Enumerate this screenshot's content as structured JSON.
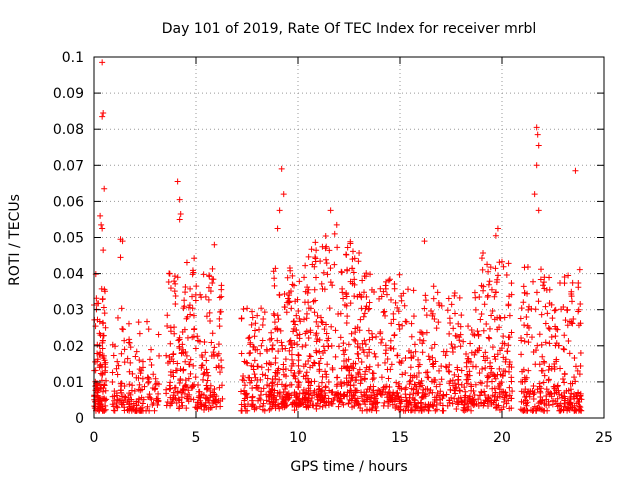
{
  "chart_data": {
    "type": "scatter",
    "title": "Day 101 of 2019, Rate Of TEC Index for receiver mrbl",
    "xlabel": "GPS time / hours",
    "ylabel": "ROTI / TECUs",
    "xlim": [
      0,
      25
    ],
    "ylim": [
      0,
      0.1
    ],
    "grid": true,
    "marker": "plus",
    "series": [
      {
        "color": "#ff0000",
        "outliers": [
          [
            0.4,
            0.0985
          ],
          [
            0.45,
            0.0845
          ],
          [
            0.4,
            0.0835
          ],
          [
            0.5,
            0.0635
          ],
          [
            0.3,
            0.056
          ],
          [
            0.35,
            0.0535
          ],
          [
            0.4,
            0.0525
          ],
          [
            0.45,
            0.0465
          ],
          [
            1.3,
            0.0495
          ],
          [
            1.4,
            0.049
          ],
          [
            1.3,
            0.0445
          ],
          [
            4.1,
            0.0655
          ],
          [
            4.2,
            0.0605
          ],
          [
            4.25,
            0.0565
          ],
          [
            4.2,
            0.055
          ],
          [
            5.9,
            0.048
          ],
          [
            9.2,
            0.069
          ],
          [
            9.3,
            0.062
          ],
          [
            9.1,
            0.0575
          ],
          [
            9.0,
            0.0525
          ],
          [
            11.6,
            0.0575
          ],
          [
            11.9,
            0.0535
          ],
          [
            11.8,
            0.051
          ],
          [
            16.2,
            0.049
          ],
          [
            19.8,
            0.0525
          ],
          [
            19.7,
            0.0505
          ],
          [
            21.7,
            0.0805
          ],
          [
            21.75,
            0.0785
          ],
          [
            21.8,
            0.0755
          ],
          [
            21.7,
            0.07
          ],
          [
            21.6,
            0.062
          ],
          [
            21.8,
            0.0575
          ],
          [
            23.6,
            0.0685
          ]
        ],
        "segments": [
          {
            "x_range": [
              0.0,
              0.6
            ],
            "baseline": 0.011,
            "peak": 0.038,
            "density": 120
          },
          {
            "x_range": [
              0.9,
              1.8
            ],
            "baseline": 0.009,
            "peak": 0.03,
            "density": 70
          },
          {
            "x_range": [
              1.8,
              3.2
            ],
            "baseline": 0.008,
            "peak": 0.028,
            "density": 90
          },
          {
            "x_range": [
              3.5,
              6.3
            ],
            "baseline": 0.012,
            "peak": 0.042,
            "density": 260
          },
          {
            "x_range": [
              7.2,
              8.8
            ],
            "baseline": 0.01,
            "peak": 0.03,
            "density": 140
          },
          {
            "x_range": [
              8.8,
              10.5
            ],
            "baseline": 0.012,
            "peak": 0.04,
            "density": 220
          },
          {
            "x_range": [
              10.5,
              13.0
            ],
            "baseline": 0.013,
            "peak": 0.048,
            "density": 300
          },
          {
            "x_range": [
              13.0,
              15.0
            ],
            "baseline": 0.011,
            "peak": 0.04,
            "density": 200
          },
          {
            "x_range": [
              15.0,
              17.0
            ],
            "baseline": 0.01,
            "peak": 0.036,
            "density": 180
          },
          {
            "x_range": [
              17.0,
              19.0
            ],
            "baseline": 0.01,
            "peak": 0.036,
            "density": 170
          },
          {
            "x_range": [
              19.0,
              20.5
            ],
            "baseline": 0.011,
            "peak": 0.044,
            "density": 160
          },
          {
            "x_range": [
              20.9,
              22.3
            ],
            "baseline": 0.009,
            "peak": 0.042,
            "density": 130
          },
          {
            "x_range": [
              22.3,
              23.9
            ],
            "baseline": 0.01,
            "peak": 0.04,
            "density": 160
          }
        ]
      }
    ],
    "xticks": [
      "0",
      "5",
      "10",
      "15",
      "20",
      "25"
    ],
    "yticks": [
      "0",
      "0.01",
      "0.02",
      "0.03",
      "0.04",
      "0.05",
      "0.06",
      "0.07",
      "0.08",
      "0.09",
      "0.1"
    ],
    "xtick_values": [
      0,
      5,
      10,
      15,
      20,
      25
    ],
    "ytick_values": [
      0,
      0.01,
      0.02,
      0.03,
      0.04,
      0.05,
      0.06,
      0.07,
      0.08,
      0.09,
      0.1
    ]
  }
}
